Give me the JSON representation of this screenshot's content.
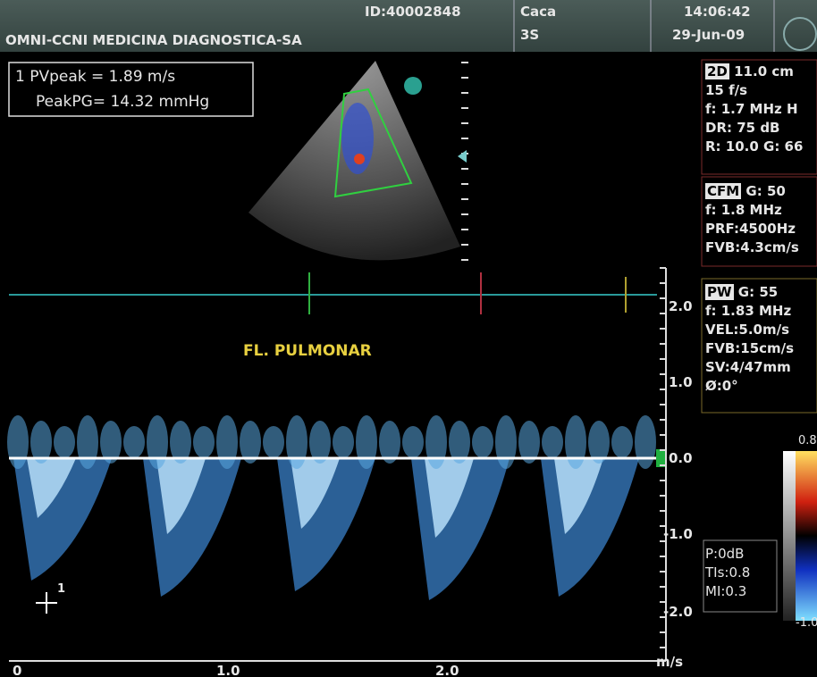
{
  "header": {
    "id": "ID:40002848",
    "institution": "OMNI-CCNI MEDICINA DIAGNOSTICA-SA",
    "patient": "Caca",
    "age": "3S",
    "time": "14:06:42",
    "date": "29-Jun-09"
  },
  "measurement": {
    "lines": [
      "1 PVpeak = 1.89 m/s",
      "PeakPG= 14.32 mmHg"
    ]
  },
  "label": "FL. PULMONAR",
  "panels": [
    {
      "title": "2D",
      "first": "11.0 cm",
      "lines": [
        "15 f/s",
        "f: 1.7 MHz H",
        "DR: 75 dB",
        "R: 10.0 G: 66"
      ]
    },
    {
      "title": "CFM",
      "first": "G: 50",
      "lines": [
        "f: 1.8 MHz",
        "PRF:4500Hz",
        "FVB:4.3cm/s"
      ]
    },
    {
      "title": "PW",
      "first": "G: 55",
      "lines": [
        "f: 1.83 MHz",
        "VEL:5.0m/s",
        "FVB:15cm/s",
        "SV:4/47mm",
        "Ø:0°"
      ]
    }
  ],
  "power": [
    "P:0dB",
    "TIs:0.8",
    "MI:0.3"
  ],
  "velocity_scale": [
    "2.0",
    "1.0",
    "0.0",
    "-1.0",
    "-2.0"
  ],
  "velocity_unit": "m/s",
  "time_scale": [
    "0",
    "1.0",
    "2.0"
  ],
  "colorbar": [
    "0.8",
    "-1.0"
  ],
  "cursor": "1"
}
